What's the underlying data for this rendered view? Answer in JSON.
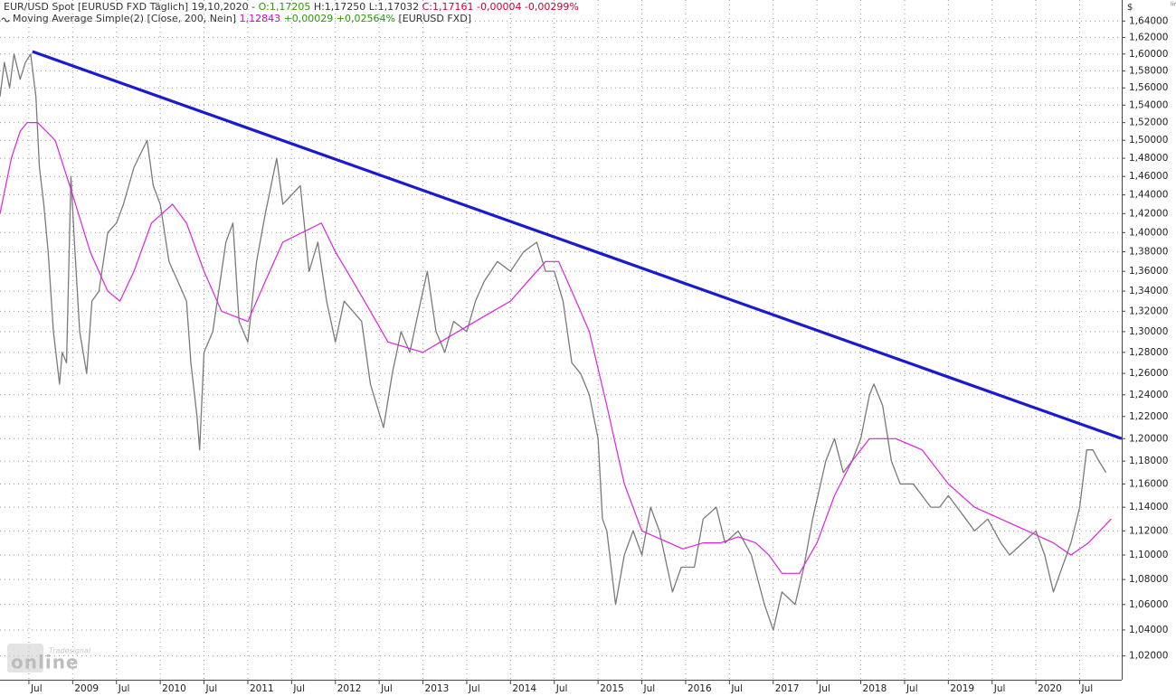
{
  "header": {
    "line1": [
      {
        "text": "EUR/USD Spot [EURUSD FXD  Täglich] 19,10,2020 - ",
        "color": "#333333"
      },
      {
        "text": "O:1,17205",
        "color": "#2a9a00"
      },
      {
        "text": " H:1,17250 L:1,17032 ",
        "color": "#333333"
      },
      {
        "text": "C:1,17161 -0,00004 -0,00299%",
        "color": "#d00030"
      }
    ],
    "line2": [
      {
        "text": "Moving Average Simple(2) [Close, 200, Nein] ",
        "color": "#333333"
      },
      {
        "text": "1,12843",
        "color": "#d000d0"
      },
      {
        "text": " +0,00029 +0,02564%",
        "color": "#2a9a00"
      },
      {
        "text": " [EURUSD FXD]",
        "color": "#333333"
      }
    ]
  },
  "logo": {
    "brand": "Tradesignal",
    "name": "online"
  },
  "chart_data": {
    "type": "line",
    "y_unit": "$",
    "scale_label": "lin",
    "log_y": true,
    "grid": true,
    "xlim": [
      2008.17,
      2020.98
    ],
    "ylim": [
      1.002,
      1.666
    ],
    "xticks": [
      {
        "value": 2008.5,
        "label": "Jul"
      },
      2009,
      {
        "value": 2009.5,
        "label": "Jul"
      },
      2010,
      {
        "value": 2010.5,
        "label": "Jul"
      },
      2011,
      {
        "value": 2011.5,
        "label": "Jul"
      },
      2012,
      {
        "value": 2012.5,
        "label": "Jul"
      },
      2013,
      {
        "value": 2013.5,
        "label": "Jul"
      },
      2014,
      {
        "value": 2014.5,
        "label": "Jul"
      },
      2015,
      {
        "value": 2015.5,
        "label": "Jul"
      },
      2016,
      {
        "value": 2016.5,
        "label": "Jul"
      },
      2017,
      {
        "value": 2017.5,
        "label": "Jul"
      },
      2018,
      {
        "value": 2018.5,
        "label": "Jul"
      },
      2019,
      {
        "value": 2019.5,
        "label": "Jul"
      },
      2020,
      {
        "value": 2020.5,
        "label": "Jul"
      }
    ],
    "yticks": [
      {
        "value": 1.02,
        "label": "1,02000"
      },
      {
        "value": 1.04,
        "label": "1,04000"
      },
      {
        "value": 1.06,
        "label": "1,06000"
      },
      {
        "value": 1.08,
        "label": "1,08000"
      },
      {
        "value": 1.1,
        "label": "1,10000"
      },
      {
        "value": 1.12,
        "label": "1,12000"
      },
      {
        "value": 1.14,
        "label": "1,14000"
      },
      {
        "value": 1.16,
        "label": "1,16000"
      },
      {
        "value": 1.18,
        "label": "1,18000"
      },
      {
        "value": 1.2,
        "label": "1,20000"
      },
      {
        "value": 1.22,
        "label": "1,22000"
      },
      {
        "value": 1.24,
        "label": "1,24000"
      },
      {
        "value": 1.26,
        "label": "1,26000"
      },
      {
        "value": 1.28,
        "label": "1,28000"
      },
      {
        "value": 1.3,
        "label": "1,30000"
      },
      {
        "value": 1.32,
        "label": "1,32000"
      },
      {
        "value": 1.34,
        "label": "1,34000"
      },
      {
        "value": 1.36,
        "label": "1,36000"
      },
      {
        "value": 1.38,
        "label": "1,38000"
      },
      {
        "value": 1.4,
        "label": "1,40000"
      },
      {
        "value": 1.42,
        "label": "1,42000"
      },
      {
        "value": 1.44,
        "label": "1,44000"
      },
      {
        "value": 1.46,
        "label": "1,46000"
      },
      {
        "value": 1.48,
        "label": "1,48000"
      },
      {
        "value": 1.5,
        "label": "1,50000"
      },
      {
        "value": 1.52,
        "label": "1,52000"
      },
      {
        "value": 1.54,
        "label": "1,54000"
      },
      {
        "value": 1.56,
        "label": "1,56000"
      },
      {
        "value": 1.58,
        "label": "1,58000"
      },
      {
        "value": 1.6,
        "label": "1,60000"
      },
      {
        "value": 1.62,
        "label": "1,62000"
      },
      {
        "value": 1.64,
        "label": "1,64000"
      }
    ],
    "series": [
      {
        "name": "EUR/USD Spot",
        "color": "#7a7a7a",
        "width": 1.3,
        "x": [
          2008.17,
          2008.22,
          2008.28,
          2008.33,
          2008.4,
          2008.46,
          2008.52,
          2008.58,
          2008.62,
          2008.67,
          2008.72,
          2008.78,
          2008.85,
          2008.88,
          2008.93,
          2008.98,
          2009.02,
          2009.08,
          2009.16,
          2009.22,
          2009.3,
          2009.4,
          2009.5,
          2009.58,
          2009.7,
          2009.85,
          2009.92,
          2010.0,
          2010.1,
          2010.2,
          2010.3,
          2010.35,
          2010.42,
          2010.45,
          2010.5,
          2010.6,
          2010.75,
          2010.83,
          2010.9,
          2011.0,
          2011.1,
          2011.2,
          2011.33,
          2011.4,
          2011.5,
          2011.6,
          2011.7,
          2011.8,
          2011.9,
          2012.0,
          2012.1,
          2012.2,
          2012.3,
          2012.4,
          2012.55,
          2012.65,
          2012.75,
          2012.85,
          2012.95,
          2013.05,
          2013.15,
          2013.25,
          2013.35,
          2013.5,
          2013.6,
          2013.7,
          2013.85,
          2014.0,
          2014.15,
          2014.3,
          2014.4,
          2014.5,
          2014.6,
          2014.7,
          2014.8,
          2014.9,
          2015.0,
          2015.05,
          2015.1,
          2015.2,
          2015.3,
          2015.4,
          2015.5,
          2015.6,
          2015.7,
          2015.85,
          2015.95,
          2016.1,
          2016.2,
          2016.35,
          2016.45,
          2016.6,
          2016.75,
          2016.9,
          2017.0,
          2017.1,
          2017.25,
          2017.35,
          2017.45,
          2017.6,
          2017.7,
          2017.8,
          2017.9,
          2018.0,
          2018.1,
          2018.15,
          2018.25,
          2018.35,
          2018.45,
          2018.6,
          2018.7,
          2018.8,
          2018.9,
          2019.0,
          2019.2,
          2019.3,
          2019.45,
          2019.6,
          2019.7,
          2019.85,
          2020.0,
          2020.1,
          2020.2,
          2020.3,
          2020.4,
          2020.5,
          2020.58,
          2020.65,
          2020.72,
          2020.8
        ],
        "values": [
          1.55,
          1.59,
          1.56,
          1.6,
          1.57,
          1.59,
          1.6,
          1.55,
          1.47,
          1.43,
          1.38,
          1.3,
          1.25,
          1.28,
          1.27,
          1.46,
          1.39,
          1.3,
          1.26,
          1.33,
          1.34,
          1.4,
          1.41,
          1.43,
          1.47,
          1.5,
          1.45,
          1.43,
          1.37,
          1.35,
          1.33,
          1.27,
          1.22,
          1.19,
          1.28,
          1.3,
          1.39,
          1.41,
          1.31,
          1.29,
          1.37,
          1.42,
          1.48,
          1.43,
          1.44,
          1.45,
          1.36,
          1.39,
          1.33,
          1.29,
          1.33,
          1.32,
          1.31,
          1.25,
          1.21,
          1.26,
          1.3,
          1.28,
          1.32,
          1.36,
          1.3,
          1.28,
          1.31,
          1.3,
          1.33,
          1.35,
          1.37,
          1.36,
          1.38,
          1.39,
          1.36,
          1.36,
          1.33,
          1.27,
          1.26,
          1.24,
          1.2,
          1.13,
          1.12,
          1.06,
          1.1,
          1.12,
          1.1,
          1.14,
          1.12,
          1.07,
          1.09,
          1.09,
          1.13,
          1.14,
          1.11,
          1.12,
          1.1,
          1.06,
          1.04,
          1.07,
          1.06,
          1.09,
          1.13,
          1.18,
          1.2,
          1.17,
          1.18,
          1.2,
          1.24,
          1.25,
          1.23,
          1.18,
          1.16,
          1.16,
          1.15,
          1.14,
          1.14,
          1.15,
          1.13,
          1.12,
          1.13,
          1.11,
          1.1,
          1.11,
          1.12,
          1.1,
          1.07,
          1.09,
          1.11,
          1.14,
          1.19,
          1.19,
          1.18,
          1.17
        ]
      },
      {
        "name": "Moving Average Simple(2)",
        "color": "#e020e0",
        "width": 1.2,
        "x": [
          2008.17,
          2008.3,
          2008.4,
          2008.48,
          2008.6,
          2008.8,
          2009.0,
          2009.2,
          2009.4,
          2009.54,
          2009.7,
          2009.9,
          2010.14,
          2010.3,
          2010.5,
          2010.7,
          2011.0,
          2011.2,
          2011.4,
          2011.84,
          2012.0,
          2012.2,
          2012.4,
          2012.6,
          2013.0,
          2013.2,
          2013.4,
          2013.6,
          2013.8,
          2014.0,
          2014.2,
          2014.4,
          2014.55,
          2014.7,
          2014.9,
          2015.1,
          2015.3,
          2015.5,
          2015.97,
          2016.2,
          2016.4,
          2016.6,
          2016.8,
          2016.95,
          2017.1,
          2017.3,
          2017.5,
          2017.7,
          2017.9,
          2018.1,
          2018.4,
          2018.7,
          2019.0,
          2019.3,
          2019.6,
          2019.9,
          2020.2,
          2020.4,
          2020.6,
          2020.86
        ],
        "values": [
          1.42,
          1.48,
          1.51,
          1.52,
          1.52,
          1.5,
          1.44,
          1.38,
          1.34,
          1.33,
          1.36,
          1.41,
          1.43,
          1.41,
          1.36,
          1.32,
          1.31,
          1.35,
          1.39,
          1.41,
          1.38,
          1.35,
          1.32,
          1.29,
          1.28,
          1.29,
          1.3,
          1.31,
          1.32,
          1.33,
          1.35,
          1.37,
          1.37,
          1.34,
          1.3,
          1.23,
          1.16,
          1.12,
          1.105,
          1.11,
          1.11,
          1.115,
          1.11,
          1.1,
          1.085,
          1.085,
          1.11,
          1.15,
          1.18,
          1.2,
          1.2,
          1.19,
          1.16,
          1.14,
          1.13,
          1.12,
          1.11,
          1.1,
          1.11,
          1.13
        ]
      },
      {
        "name": "Trendline",
        "color": "#1a1ad0",
        "width": 3.2,
        "x": [
          2008.54,
          2020.98
        ],
        "values": [
          1.603,
          1.2
        ]
      }
    ]
  }
}
